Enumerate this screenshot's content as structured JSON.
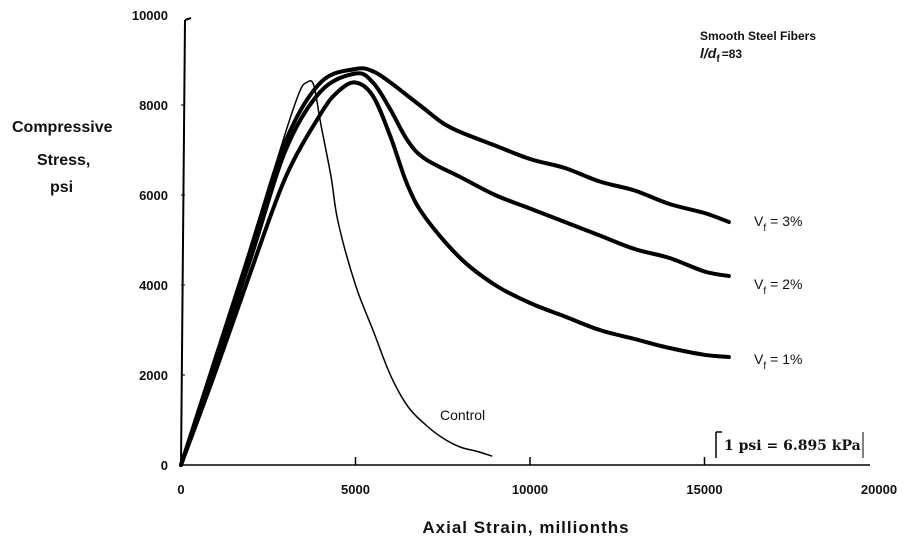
{
  "chart_data": {
    "type": "line",
    "title": "",
    "xlabel": "Axial Strain, millionths",
    "ylabel": [
      "Compressive",
      "Stress,",
      "psi"
    ],
    "xlim": [
      0,
      20000
    ],
    "ylim": [
      0,
      10000
    ],
    "x_ticks": [
      0,
      5000,
      10000,
      15000,
      20000
    ],
    "x_tick_labels": [
      "0",
      "5000",
      "10000",
      "15000",
      "20000"
    ],
    "y_ticks": [
      0,
      2000,
      4000,
      6000,
      8000,
      10000
    ],
    "y_tick_labels": [
      "0",
      "2000",
      "4000",
      "6000",
      "8000",
      "10000"
    ],
    "fiber_note": {
      "line1": "Smooth Steel Fibers",
      "ratio_main": "l/d",
      "ratio_sub": "f",
      "ratio_value": "=83"
    },
    "conversion_note": "1 psi = 6.895 kPa",
    "series": [
      {
        "name": "Control",
        "label_text": "Control",
        "weight": "thin",
        "x": [
          0,
          1000,
          2000,
          3000,
          3400,
          3600,
          3800,
          4000,
          4300,
          4500,
          5000,
          5500,
          6000,
          6500,
          7000,
          7500,
          8000,
          8500,
          8900
        ],
        "y": [
          0,
          2400,
          4900,
          7400,
          8300,
          8500,
          8450,
          7600,
          6400,
          5400,
          4000,
          3000,
          2000,
          1300,
          900,
          600,
          400,
          300,
          200
        ]
      },
      {
        "name": "Vf = 1%",
        "label_main": "V",
        "label_sub": "f",
        "label_value": "= 1%",
        "weight": "thick",
        "x": [
          0,
          1000,
          2000,
          3000,
          4000,
          4500,
          5000,
          5500,
          6000,
          6500,
          7000,
          8000,
          9000,
          10000,
          11000,
          12000,
          13000,
          14000,
          15000,
          15700
        ],
        "y": [
          0,
          2100,
          4300,
          6400,
          7800,
          8300,
          8500,
          8200,
          7300,
          6200,
          5500,
          4600,
          4000,
          3600,
          3300,
          3000,
          2800,
          2600,
          2450,
          2400
        ]
      },
      {
        "name": "Vf = 2%",
        "label_main": "V",
        "label_sub": "f",
        "label_value": "= 2%",
        "weight": "thick",
        "x": [
          0,
          1000,
          2000,
          3000,
          4000,
          5000,
          5500,
          6000,
          6500,
          7000,
          8000,
          9000,
          10000,
          11000,
          12000,
          13000,
          14000,
          15000,
          15700
        ],
        "y": [
          0,
          2300,
          4600,
          7000,
          8300,
          8700,
          8500,
          7900,
          7200,
          6800,
          6400,
          6000,
          5700,
          5400,
          5100,
          4800,
          4600,
          4300,
          4200
        ]
      },
      {
        "name": "Vf = 3%",
        "label_main": "V",
        "label_sub": "f",
        "label_value": "= 3%",
        "weight": "thick",
        "x": [
          0,
          1000,
          2000,
          3000,
          4000,
          5000,
          5500,
          6000,
          6500,
          7000,
          7500,
          8000,
          9000,
          10000,
          11000,
          12000,
          13000,
          14000,
          15000,
          15700
        ],
        "y": [
          0,
          2400,
          4800,
          7200,
          8500,
          8800,
          8750,
          8500,
          8200,
          7900,
          7600,
          7400,
          7100,
          6800,
          6600,
          6300,
          6100,
          5800,
          5600,
          5400
        ]
      }
    ]
  }
}
